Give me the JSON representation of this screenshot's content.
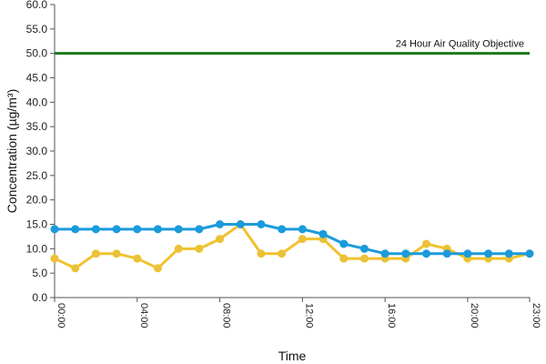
{
  "chart_data": {
    "type": "line",
    "xlabel": "Time",
    "ylabel": "Concentration (µg/m³)",
    "ylim": [
      0,
      60
    ],
    "y_ticks": [
      "0.0",
      "5.0",
      "10.0",
      "15.0",
      "20.0",
      "25.0",
      "30.0",
      "35.0",
      "40.0",
      "45.0",
      "50.0",
      "55.0",
      "60.0"
    ],
    "x_ticks": [
      "00:00",
      "04:00",
      "08:00",
      "12:00",
      "16:00",
      "20:00",
      "23:00"
    ],
    "x_tick_hours": [
      0,
      4,
      8,
      12,
      16,
      20,
      23
    ],
    "x": [
      "00:00",
      "01:00",
      "02:00",
      "03:00",
      "04:00",
      "05:00",
      "06:00",
      "07:00",
      "08:00",
      "09:00",
      "10:00",
      "11:00",
      "12:00",
      "13:00",
      "14:00",
      "15:00",
      "16:00",
      "17:00",
      "18:00",
      "19:00",
      "20:00",
      "21:00",
      "22:00",
      "23:00"
    ],
    "series": [
      {
        "color": "#f2c12e",
        "marker_color": "#e8c23a",
        "values": [
          8,
          6,
          9,
          9,
          8,
          6,
          10,
          10,
          12,
          15,
          9,
          9,
          12,
          12,
          8,
          8,
          8,
          8,
          11,
          10,
          8,
          8,
          8,
          9
        ]
      },
      {
        "color": "#1a9bdc",
        "marker_color": "#1a9bdc",
        "values": [
          14,
          14,
          14,
          14,
          14,
          14,
          14,
          14,
          15,
          15,
          15,
          14,
          14,
          13,
          11,
          10,
          9,
          9,
          9,
          9,
          9,
          9,
          9,
          9
        ]
      }
    ],
    "reference_line": {
      "value": 50,
      "label": "24 Hour Air Quality Objective",
      "color": "#1a7a1a"
    },
    "grid": false,
    "legend": "none"
  }
}
